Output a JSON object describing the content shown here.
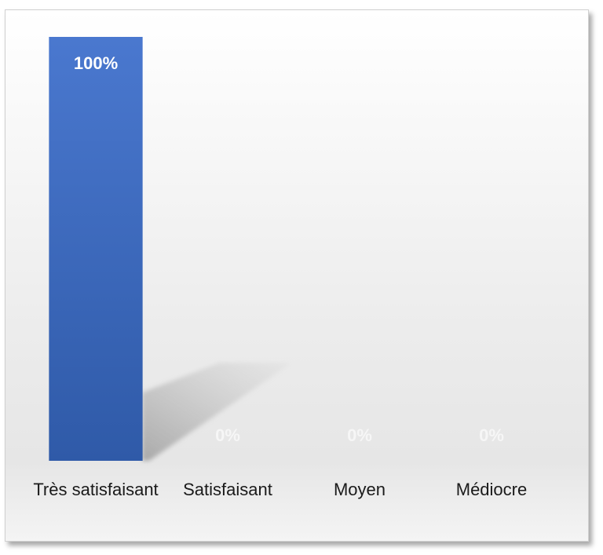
{
  "chart_data": {
    "type": "bar",
    "categories": [
      "Très satisfaisant",
      "Satisfaisant",
      "Moyen",
      "Médiocre"
    ],
    "values": [
      100,
      0,
      0,
      0
    ],
    "value_labels": [
      "100%",
      "0%",
      "0%",
      "0%"
    ],
    "color": "#4472c4",
    "ylim": [
      0,
      100
    ]
  }
}
